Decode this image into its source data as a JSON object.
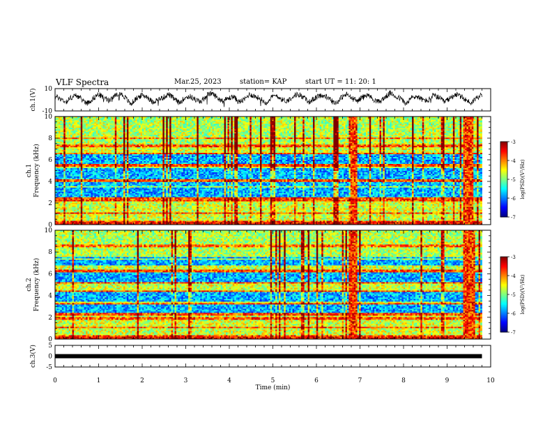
{
  "header": {
    "title": "VLF Spectra",
    "date": "Mar.25, 2023",
    "station": "station= KAP",
    "start": "start  UT =    11: 20: 1"
  },
  "chart_data": [
    {
      "type": "line",
      "ylabel": "ch.1(V)",
      "ylim": [
        -10,
        10
      ],
      "yticks": [
        "10",
        "-10"
      ],
      "series": [
        {
          "values": [
            3,
            1,
            -2,
            2,
            4,
            0,
            -3,
            1,
            5,
            2,
            -1,
            3,
            6,
            2,
            -4,
            1,
            4,
            3,
            -2,
            0,
            2,
            5,
            1,
            -3,
            2,
            3,
            0,
            -2,
            4,
            6,
            2,
            -1,
            1,
            3,
            -2,
            0,
            5,
            3,
            1,
            -3,
            2,
            4,
            0,
            -1,
            3,
            5,
            2,
            -2,
            1,
            4,
            3,
            0,
            -3,
            2,
            5,
            1,
            -1,
            3,
            4,
            0,
            -2,
            2,
            6,
            3,
            1,
            -4,
            2,
            3,
            0,
            -1,
            4,
            2,
            -2,
            1,
            5,
            3,
            0,
            -3,
            2,
            4
          ]
        }
      ]
    },
    {
      "type": "heatmap",
      "ylabel": "ch.1\nFrequency (kHz)",
      "ylim": [
        0,
        10
      ],
      "yticks": [
        "0",
        "2",
        "4",
        "6",
        "8",
        "10"
      ],
      "colorbar": {
        "label": "log(PSD)(V²/Hz)",
        "ticks": [
          "-3",
          "-4",
          "-5",
          "-6",
          "-7"
        ],
        "range": [
          -7,
          -3
        ]
      },
      "quiet_bands_khz": [
        [
          4.2,
          5.2
        ],
        [
          2.6,
          3.4
        ],
        [
          5.7,
          6.5
        ],
        [
          3.5,
          4.0
        ]
      ],
      "line_bands_khz": [
        0.3,
        1.1,
        2.3,
        2.5,
        3.5,
        4.1,
        5.5,
        6.6,
        7.3,
        8.0
      ],
      "burst_minutes": [
        [
          6.8,
          6.95
        ],
        [
          9.35,
          9.6
        ]
      ]
    },
    {
      "type": "heatmap",
      "ylabel": "ch.2\nFrequency (kHz)",
      "ylim": [
        0,
        10
      ],
      "yticks": [
        "0",
        "2",
        "4",
        "6",
        "8",
        "10"
      ],
      "colorbar": {
        "label": "log(PSD)(V²/Hz)",
        "ticks": [
          "-3",
          "-4",
          "-5",
          "-6",
          "-7"
        ],
        "range": [
          -7,
          -3
        ]
      },
      "quiet_bands_khz": [
        [
          3.5,
          4.3
        ],
        [
          5.3,
          6.1
        ],
        [
          2.5,
          3.2
        ],
        [
          6.8,
          7.5
        ]
      ],
      "line_bands_khz": [
        0.3,
        1.1,
        1.9,
        2.3,
        3.3,
        4.4,
        5.2,
        6.3,
        7.4,
        8.6
      ],
      "burst_minutes": [
        [
          6.75,
          6.95
        ],
        [
          9.35,
          9.65
        ]
      ]
    },
    {
      "type": "line",
      "ylabel": "ch.3(V)",
      "ylim": [
        -5,
        5
      ],
      "yticks": [
        "5",
        "0",
        "-5"
      ],
      "series": [
        {
          "values": [
            0,
            0
          ]
        }
      ],
      "xlabel": "Time (min)",
      "xlim": [
        0,
        10
      ],
      "xticks": [
        "0",
        "1",
        "2",
        "3",
        "4",
        "5",
        "6",
        "7",
        "8",
        "9",
        "10"
      ]
    }
  ]
}
